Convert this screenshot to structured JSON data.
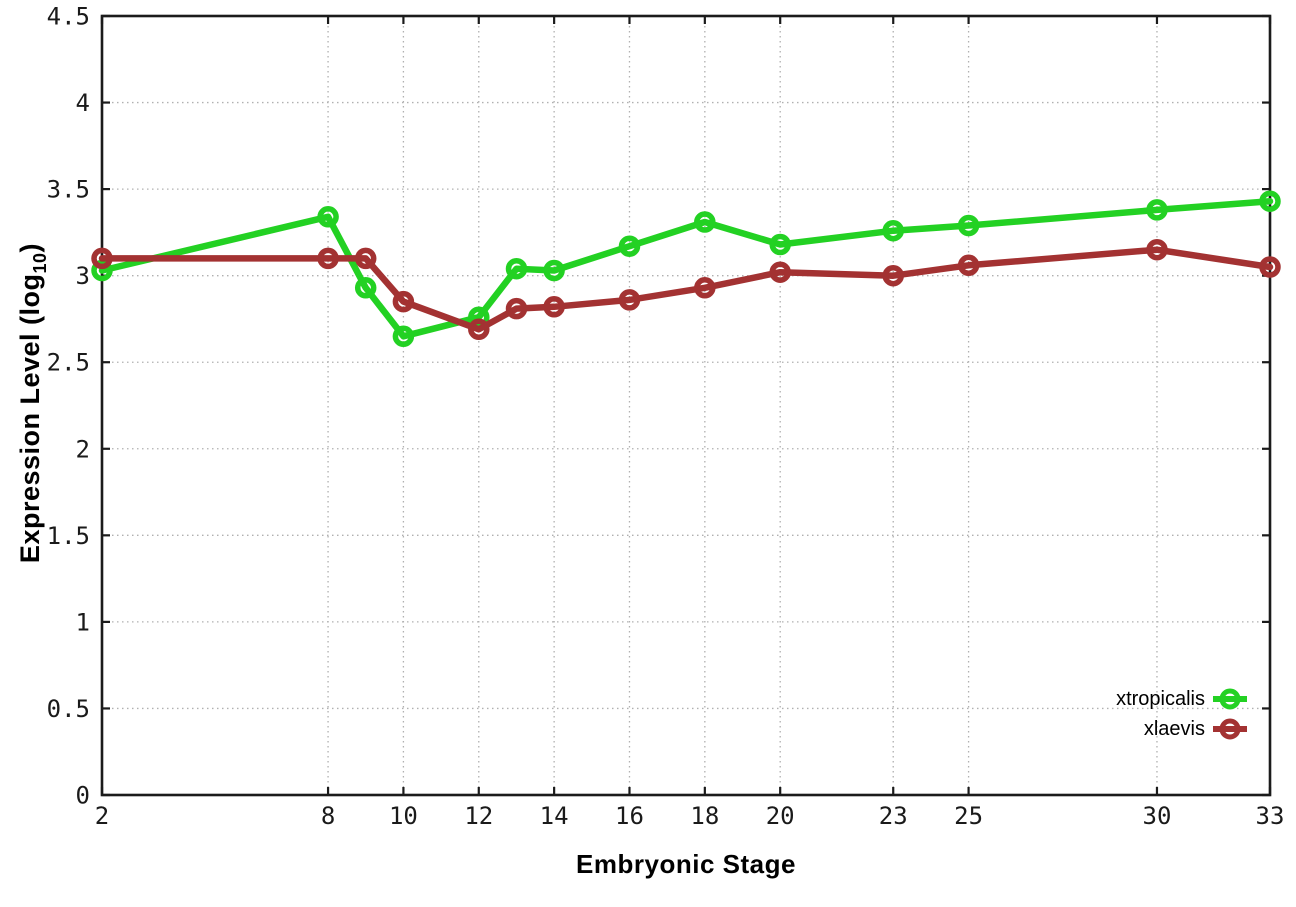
{
  "style": {
    "background": "#ffffff",
    "axis_color": "#1b1b1b",
    "grid_color": "#b0b0b0",
    "tick_label_color": "#1a1a1a"
  },
  "chart_data": {
    "type": "line",
    "title": "",
    "xlabel": "Embryonic Stage",
    "ylabel": "Expression Level (log10)",
    "ylabel_rich": {
      "pre": "Expression Level (log",
      "sub": "10",
      "post": ")"
    },
    "x": [
      2,
      8,
      9,
      10,
      12,
      13,
      14,
      16,
      18,
      20,
      23,
      25,
      30,
      33
    ],
    "xticks": [
      2,
      8,
      10,
      12,
      14,
      16,
      18,
      20,
      23,
      25,
      30,
      33
    ],
    "yticks": [
      0,
      0.5,
      1,
      1.5,
      2,
      2.5,
      3,
      3.5,
      4,
      4.5
    ],
    "xlim": [
      2,
      33
    ],
    "ylim": [
      0,
      4.5
    ],
    "grid": true,
    "legend_position": "inside-bottom-right",
    "series": [
      {
        "name": "xtropicalis",
        "color": "#23d123",
        "values": [
          3.03,
          3.34,
          2.93,
          2.65,
          2.76,
          3.04,
          3.03,
          3.17,
          3.31,
          3.18,
          3.26,
          3.29,
          3.38,
          3.43
        ]
      },
      {
        "name": "xlaevis",
        "color": "#a33232",
        "values": [
          3.1,
          3.1,
          3.1,
          2.85,
          2.69,
          2.81,
          2.82,
          2.86,
          2.93,
          3.02,
          3.0,
          3.06,
          3.15,
          3.05
        ]
      }
    ]
  }
}
